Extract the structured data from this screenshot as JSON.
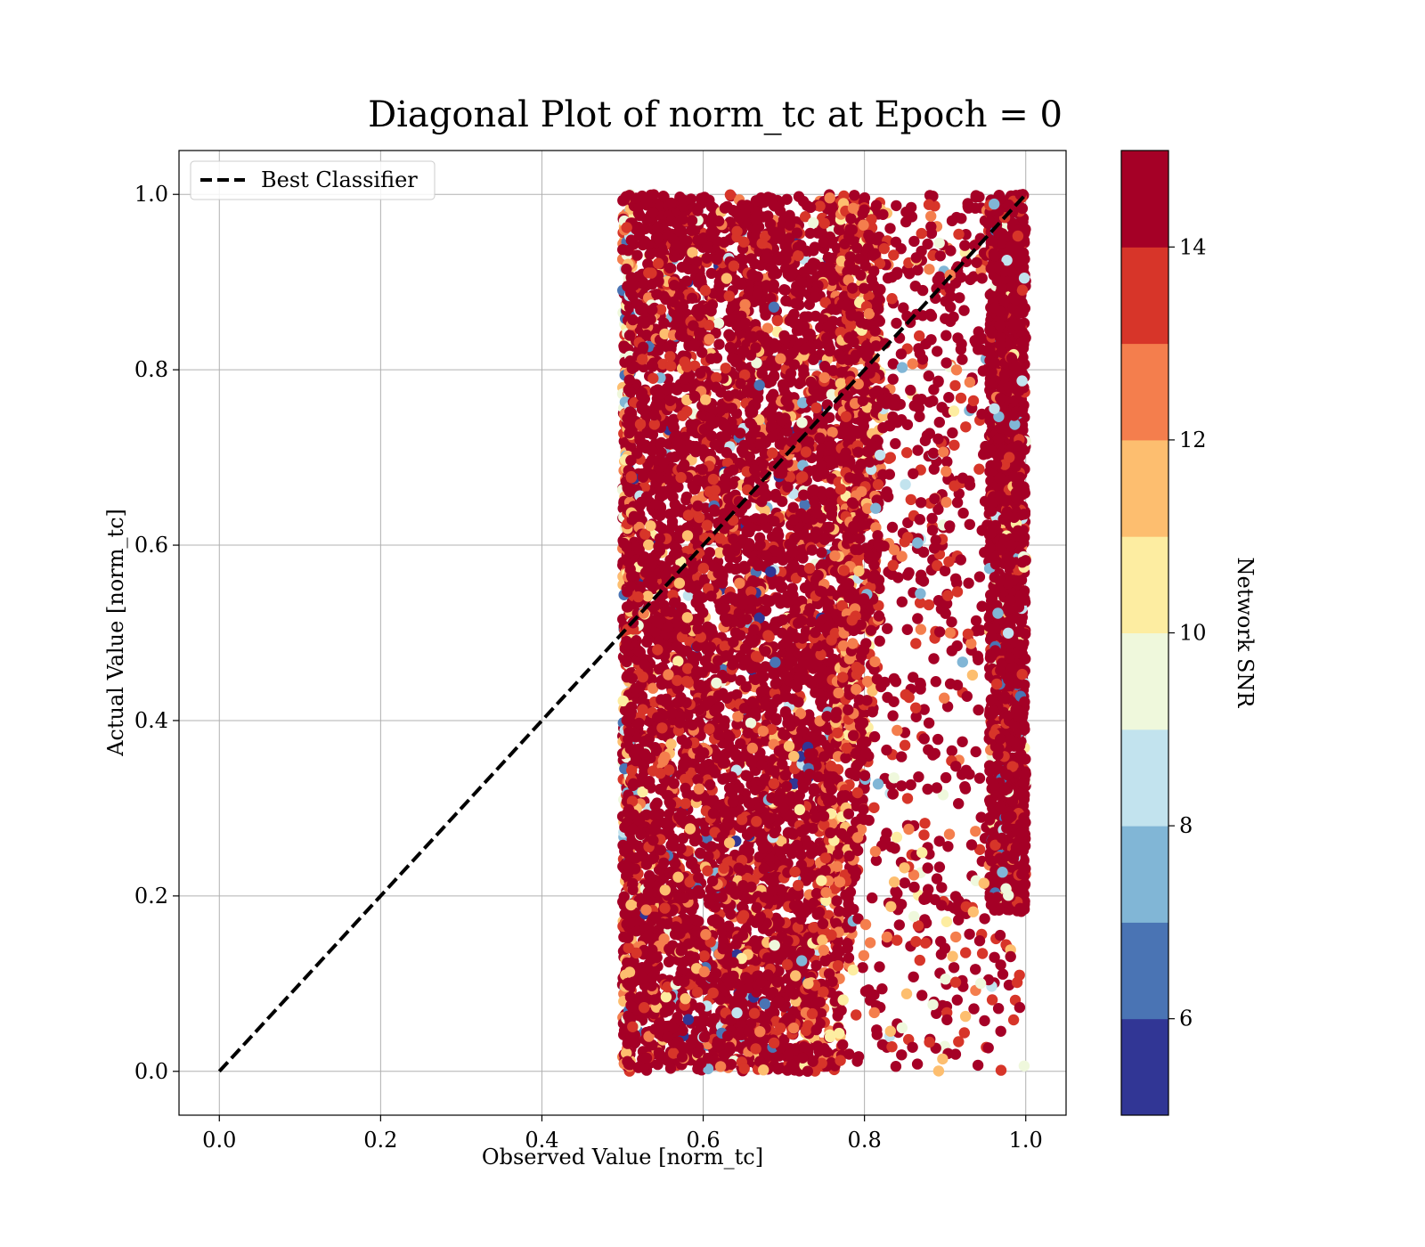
{
  "chart_data": {
    "type": "scatter",
    "title": "Diagonal Plot of norm_tc at Epoch = 0",
    "xlabel": "Observed Value [norm_tc]",
    "ylabel": "Actual Value [norm_tc]",
    "xlim": [
      -0.05,
      1.05
    ],
    "ylim": [
      -0.05,
      1.05
    ],
    "x_ticks": [
      0.0,
      0.2,
      0.4,
      0.6,
      0.8,
      1.0
    ],
    "y_ticks": [
      0.0,
      0.2,
      0.4,
      0.6,
      0.8,
      1.0
    ],
    "x_tick_labels": [
      "0.0",
      "0.2",
      "0.4",
      "0.6",
      "0.8",
      "1.0"
    ],
    "y_tick_labels": [
      "0.0",
      "0.2",
      "0.4",
      "0.6",
      "0.8",
      "1.0"
    ],
    "grid": true,
    "legend": {
      "placement": "top-left",
      "entries": [
        {
          "label": "Best Classifier",
          "style": "dashed",
          "color": "#000000"
        }
      ]
    },
    "reference_line": {
      "label": "Best Classifier",
      "x": [
        0.0,
        1.0
      ],
      "y": [
        0.0,
        1.0
      ],
      "style": "dashed",
      "color": "#000000"
    },
    "colorbar": {
      "label": "Network SNR",
      "range": [
        5,
        15
      ],
      "ticks": [
        6,
        8,
        10,
        12,
        14
      ],
      "tick_labels": [
        "6",
        "8",
        "10",
        "12",
        "14"
      ],
      "colors": [
        "#313695",
        "#4a74b4",
        "#81b6d6",
        "#c2e3ee",
        "#eff8dc",
        "#fdeda1",
        "#fdbe6f",
        "#f47e4d",
        "#d73529",
        "#a50026"
      ]
    },
    "regions": [
      {
        "description": "dense cluster",
        "x_range": [
          0.5,
          0.78
        ],
        "y_range": [
          0.0,
          1.0
        ],
        "dominant_snr": 15
      },
      {
        "description": "sparse scatter",
        "x_range": [
          0.78,
          1.0
        ],
        "y_range": [
          0.0,
          1.0
        ],
        "dominant_snr": 15
      },
      {
        "description": "dense edge cluster",
        "x_range": [
          0.95,
          1.0
        ],
        "y_range": [
          0.2,
          1.0
        ],
        "dominant_snr": 15
      }
    ]
  }
}
